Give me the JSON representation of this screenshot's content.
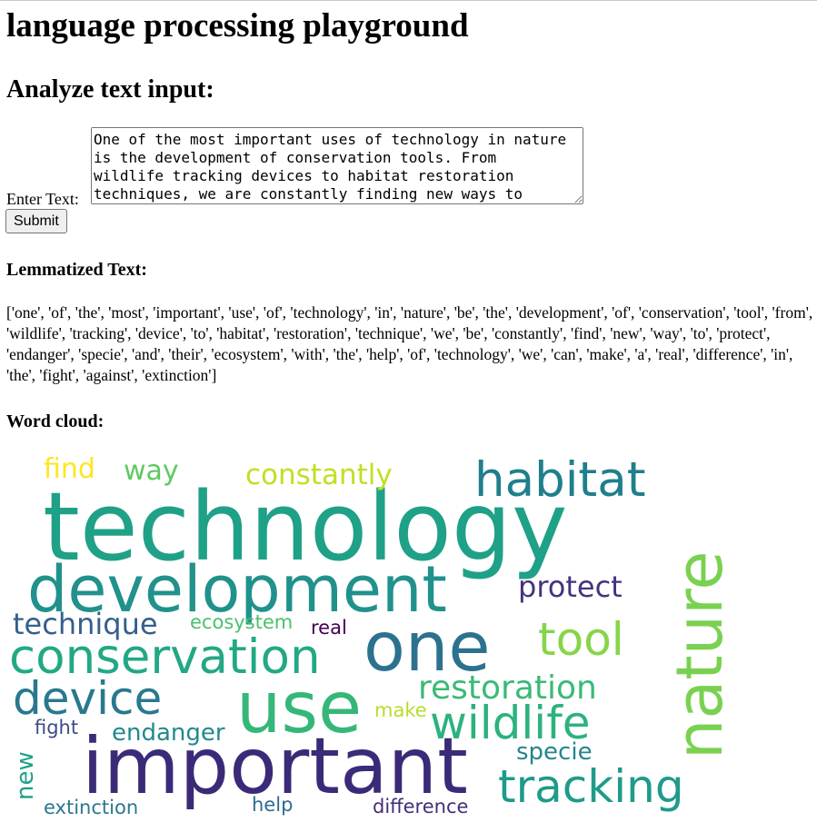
{
  "page": {
    "title": "language processing playground",
    "section_title": "Analyze text input:"
  },
  "form": {
    "label": "Enter Text:",
    "text_value": "One of the most important uses of technology in nature is the development of conservation tools. From wildlife tracking devices to habitat restoration techniques, we are constantly finding new ways to protect endangered species and their ecosystems. With the help of technology, we can make a real difference in the fight against extinction.",
    "submit_label": "Submit"
  },
  "lemmatized": {
    "heading": "Lemmatized Text:",
    "text": "['one', 'of', 'the', 'most', 'important', 'use', 'of', 'technology', 'in', 'nature', 'be', 'the', 'development', 'of', 'conservation', 'tool', 'from', 'wildlife', 'tracking', 'device', 'to', 'habitat', 'restoration', 'technique', 'we', 'be', 'constantly', 'find', 'new', 'way', 'to', 'protect', 'endanger', 'specie', 'and', 'their', 'ecosystem', 'with', 'the', 'help', 'of', 'technology', 'we', 'can', 'make', 'a', 'real', 'difference', 'in', 'the', 'fight', 'against', 'extinction']"
  },
  "word_cloud": {
    "heading": "Word cloud:",
    "words": [
      {
        "text": "technology",
        "color": "#1fa187"
      },
      {
        "text": "development",
        "color": "#21918c"
      },
      {
        "text": "important",
        "color": "#3b2a78"
      },
      {
        "text": "nature",
        "color": "#7ad151"
      },
      {
        "text": "one",
        "color": "#2c728e"
      },
      {
        "text": "use",
        "color": "#35b779"
      },
      {
        "text": "habitat",
        "color": "#1f7f8c"
      },
      {
        "text": "conservation",
        "color": "#22a884"
      },
      {
        "text": "device",
        "color": "#29788e"
      },
      {
        "text": "tool",
        "color": "#86d549"
      },
      {
        "text": "wildlife",
        "color": "#2db27d"
      },
      {
        "text": "tracking",
        "color": "#1e9b8a"
      },
      {
        "text": "restoration",
        "color": "#3aba76"
      },
      {
        "text": "technique",
        "color": "#355f8d"
      },
      {
        "text": "protect",
        "color": "#46327e"
      },
      {
        "text": "constantly",
        "color": "#c2df23"
      },
      {
        "text": "find",
        "color": "#fde725"
      },
      {
        "text": "way",
        "color": "#5ec962"
      },
      {
        "text": "ecosystem",
        "color": "#4ac16d"
      },
      {
        "text": "real",
        "color": "#440154"
      },
      {
        "text": "endanger",
        "color": "#23898e"
      },
      {
        "text": "fight",
        "color": "#3e4a89"
      },
      {
        "text": "make",
        "color": "#b5de2b"
      },
      {
        "text": "specie",
        "color": "#25848e"
      },
      {
        "text": "new",
        "color": "#1fa088"
      },
      {
        "text": "extinction",
        "color": "#2a788e"
      },
      {
        "text": "help",
        "color": "#2f6b8e"
      },
      {
        "text": "difference",
        "color": "#472d7b"
      }
    ]
  }
}
